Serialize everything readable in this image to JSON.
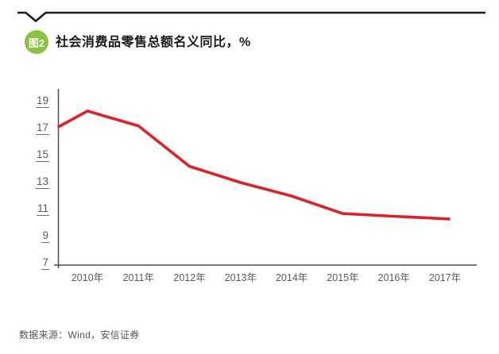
{
  "header": {
    "badge": "图2",
    "title": "社会消费品零售总额名义同比，%"
  },
  "footer": {
    "source": "数据来源：Wind，安信证券"
  },
  "colors": {
    "line": "#e01f26",
    "badge": "#8ac43f",
    "rule": "#1d1d1b",
    "axis": "#4d4d4d",
    "tick_label": "#5a5a5a",
    "title": "#1a1a1a",
    "source": "#5a5452"
  },
  "chart_data": {
    "type": "line",
    "title": "社会消费品零售总额名义同比，%",
    "unit": "%",
    "grid": false,
    "legend": false,
    "ylim": [
      7,
      19
    ],
    "y_ticks": [
      19,
      17,
      15,
      13,
      11,
      9,
      7
    ],
    "x_ticks": [
      {
        "year": 2010,
        "label": "2010年"
      },
      {
        "year": 2011,
        "label": "2011年"
      },
      {
        "year": 2012,
        "label": "2012年"
      },
      {
        "year": 2013,
        "label": "2013年"
      },
      {
        "year": 2014,
        "label": "2014年"
      },
      {
        "year": 2015,
        "label": "2015年"
      },
      {
        "year": 2016,
        "label": "2016年"
      },
      {
        "year": 2017,
        "label": "2017年"
      }
    ],
    "series": [
      {
        "name": "社会消费品零售总额名义同比",
        "color": "#e01f26",
        "points": [
          [
            2009.42,
            17.1
          ],
          [
            2010,
            18.3
          ],
          [
            2011,
            17.2
          ],
          [
            2012,
            14.2
          ],
          [
            2013,
            13.0
          ],
          [
            2014,
            12.0
          ],
          [
            2015,
            10.7
          ],
          [
            2016,
            10.5
          ],
          [
            2017.1,
            10.3
          ]
        ]
      }
    ]
  }
}
